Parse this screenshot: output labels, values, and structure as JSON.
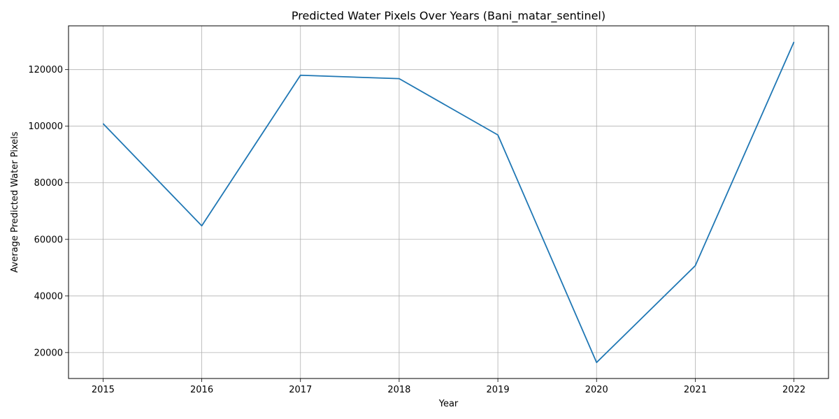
{
  "chart_data": {
    "type": "line",
    "title": "Predicted Water Pixels Over Years (Bani_matar_sentinel)",
    "xlabel": "Year",
    "ylabel": "Average Predicted Water Pixels",
    "x": [
      2015,
      2016,
      2017,
      2018,
      2019,
      2020,
      2021,
      2022
    ],
    "series": [
      {
        "values": [
          100900,
          64800,
          118000,
          116800,
          96900,
          16500,
          50700,
          129800
        ],
        "color": "#1f77b4"
      }
    ],
    "xlim": [
      2014.65,
      2022.35
    ],
    "ylim": [
      10835,
      135465
    ],
    "xticks": [
      "2015",
      "2016",
      "2017",
      "2018",
      "2019",
      "2020",
      "2021",
      "2022"
    ],
    "yticks": [
      "20000",
      "40000",
      "60000",
      "80000",
      "100000",
      "120000"
    ],
    "grid": true,
    "grid_color": "#b0b0b0",
    "legend": false
  }
}
